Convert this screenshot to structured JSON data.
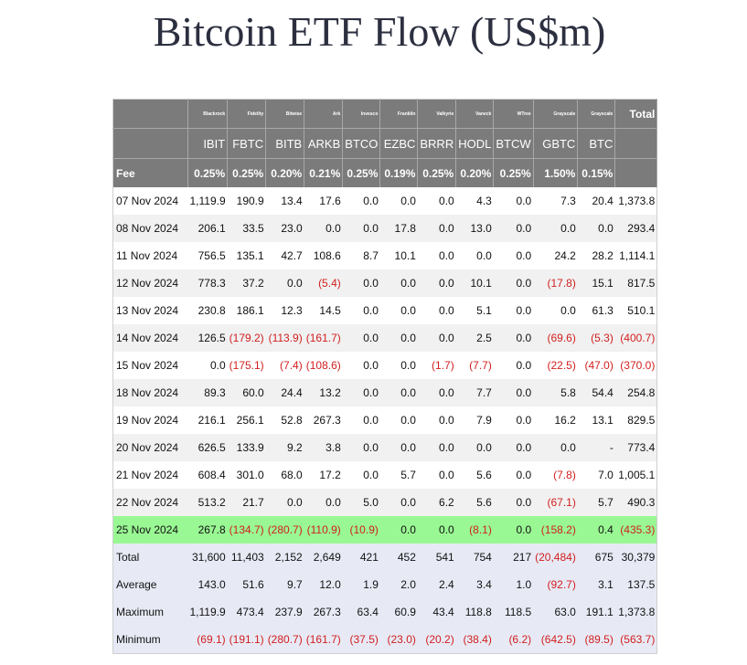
{
  "title": "Bitcoin ETF Flow (US$m)",
  "columns": [
    {
      "issuer": "Blackrock",
      "ticker": "IBIT",
      "fee": "0.25%"
    },
    {
      "issuer": "Fidelity",
      "ticker": "FBTC",
      "fee": "0.25%"
    },
    {
      "issuer": "Bitwise",
      "ticker": "BITB",
      "fee": "0.20%"
    },
    {
      "issuer": "Ark",
      "ticker": "ARKB",
      "fee": "0.21%"
    },
    {
      "issuer": "Invesco",
      "ticker": "BTCO",
      "fee": "0.25%"
    },
    {
      "issuer": "Franklin",
      "ticker": "EZBC",
      "fee": "0.19%"
    },
    {
      "issuer": "Valkyrie",
      "ticker": "BRRR",
      "fee": "0.25%"
    },
    {
      "issuer": "Vaneck",
      "ticker": "HODL",
      "fee": "0.20%"
    },
    {
      "issuer": "WTree",
      "ticker": "BTCW",
      "fee": "0.25%"
    },
    {
      "issuer": "Grayscale",
      "ticker": "GBTC",
      "fee": "1.50%"
    },
    {
      "issuer": "Grayscale",
      "ticker": "BTC",
      "fee": "0.15%"
    }
  ],
  "total_label": "Total",
  "fee_label": "Fee",
  "rows": [
    {
      "date": "07 Nov 2024",
      "values": [
        "1,119.9",
        "190.9",
        "13.4",
        "17.6",
        "0.0",
        "0.0",
        "0.0",
        "4.3",
        "0.0",
        "7.3",
        "20.4"
      ],
      "total": "1,373.8"
    },
    {
      "date": "08 Nov 2024",
      "values": [
        "206.1",
        "33.5",
        "23.0",
        "0.0",
        "0.0",
        "17.8",
        "0.0",
        "13.0",
        "0.0",
        "0.0",
        "0.0"
      ],
      "total": "293.4"
    },
    {
      "date": "11 Nov 2024",
      "values": [
        "756.5",
        "135.1",
        "42.7",
        "108.6",
        "8.7",
        "10.1",
        "0.0",
        "0.0",
        "0.0",
        "24.2",
        "28.2"
      ],
      "total": "1,114.1"
    },
    {
      "date": "12 Nov 2024",
      "values": [
        "778.3",
        "37.2",
        "0.0",
        "(5.4)",
        "0.0",
        "0.0",
        "0.0",
        "10.1",
        "0.0",
        "(17.8)",
        "15.1"
      ],
      "total": "817.5"
    },
    {
      "date": "13 Nov 2024",
      "values": [
        "230.8",
        "186.1",
        "12.3",
        "14.5",
        "0.0",
        "0.0",
        "0.0",
        "5.1",
        "0.0",
        "0.0",
        "61.3"
      ],
      "total": "510.1"
    },
    {
      "date": "14 Nov 2024",
      "values": [
        "126.5",
        "(179.2)",
        "(113.9)",
        "(161.7)",
        "0.0",
        "0.0",
        "0.0",
        "2.5",
        "0.0",
        "(69.6)",
        "(5.3)"
      ],
      "total": "(400.7)"
    },
    {
      "date": "15 Nov 2024",
      "values": [
        "0.0",
        "(175.1)",
        "(7.4)",
        "(108.6)",
        "0.0",
        "0.0",
        "(1.7)",
        "(7.7)",
        "0.0",
        "(22.5)",
        "(47.0)"
      ],
      "total": "(370.0)"
    },
    {
      "date": "18 Nov 2024",
      "values": [
        "89.3",
        "60.0",
        "24.4",
        "13.2",
        "0.0",
        "0.0",
        "0.0",
        "7.7",
        "0.0",
        "5.8",
        "54.4"
      ],
      "total": "254.8"
    },
    {
      "date": "19 Nov 2024",
      "values": [
        "216.1",
        "256.1",
        "52.8",
        "267.3",
        "0.0",
        "0.0",
        "0.0",
        "7.9",
        "0.0",
        "16.2",
        "13.1"
      ],
      "total": "829.5"
    },
    {
      "date": "20 Nov 2024",
      "values": [
        "626.5",
        "133.9",
        "9.2",
        "3.8",
        "0.0",
        "0.0",
        "0.0",
        "0.0",
        "0.0",
        "0.0",
        "-"
      ],
      "total": "773.4"
    },
    {
      "date": "21 Nov 2024",
      "values": [
        "608.4",
        "301.0",
        "68.0",
        "17.2",
        "0.0",
        "5.7",
        "0.0",
        "5.6",
        "0.0",
        "(7.8)",
        "7.0"
      ],
      "total": "1,005.1"
    },
    {
      "date": "22 Nov 2024",
      "values": [
        "513.2",
        "21.7",
        "0.0",
        "0.0",
        "5.0",
        "0.0",
        "6.2",
        "5.6",
        "0.0",
        "(67.1)",
        "5.7"
      ],
      "total": "490.3"
    },
    {
      "date": "25 Nov 2024",
      "values": [
        "267.8",
        "(134.7)",
        "(280.7)",
        "(110.9)",
        "(10.9)",
        "0.0",
        "0.0",
        "(8.1)",
        "0.0",
        "(158.2)",
        "0.4"
      ],
      "total": "(435.3)",
      "highlight": true
    }
  ],
  "stats": [
    {
      "label": "Total",
      "values": [
        "31,600",
        "11,403",
        "2,152",
        "2,649",
        "421",
        "452",
        "541",
        "754",
        "217",
        "(20,484)",
        "675"
      ],
      "total": "30,379"
    },
    {
      "label": "Average",
      "values": [
        "143.0",
        "51.6",
        "9.7",
        "12.0",
        "1.9",
        "2.0",
        "2.4",
        "3.4",
        "1.0",
        "(92.7)",
        "3.1"
      ],
      "total": "137.5"
    },
    {
      "label": "Maximum",
      "values": [
        "1,119.9",
        "473.4",
        "237.9",
        "267.3",
        "63.4",
        "60.9",
        "43.4",
        "118.8",
        "118.5",
        "63.0",
        "191.1"
      ],
      "total": "1,373.8"
    },
    {
      "label": "Minimum",
      "values": [
        "(69.1)",
        "(191.1)",
        "(280.7)",
        "(161.7)",
        "(37.5)",
        "(23.0)",
        "(20.2)",
        "(38.4)",
        "(6.2)",
        "(642.5)",
        "(89.5)"
      ],
      "total": "(563.7)"
    }
  ],
  "colors": {
    "header_bg": "#7b7b7b",
    "negative": "#d21e1e",
    "highlight_row": "#99f893",
    "stats_bg": "#e7eaf5"
  }
}
